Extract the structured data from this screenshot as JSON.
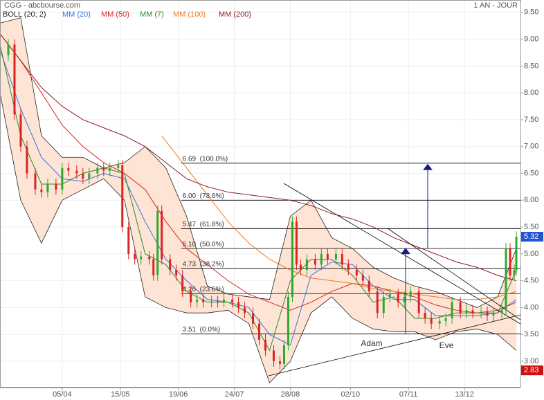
{
  "chart_data": {
    "type": "candlestick",
    "title": "CGG - abcbourse.com",
    "period": "1 AN - JOUR",
    "xlim": [
      0,
      251
    ],
    "ylim": [
      2.51,
      9.73
    ],
    "xticks": [
      {
        "value": 30,
        "label": "05/04"
      },
      {
        "value": 58,
        "label": "15/05"
      },
      {
        "value": 86,
        "label": "19/06"
      },
      {
        "value": 113,
        "label": "24/07"
      },
      {
        "value": 140,
        "label": "28/08"
      },
      {
        "value": 169,
        "label": "02/10"
      },
      {
        "value": 197,
        "label": "07/11"
      },
      {
        "value": 224,
        "label": "13/12"
      }
    ],
    "yticks": [
      {
        "value": 3,
        "label": "3.00"
      },
      {
        "value": 3.5,
        "label": "3.50"
      },
      {
        "value": 4,
        "label": "4.00"
      },
      {
        "value": 4.5,
        "label": "4.50"
      },
      {
        "value": 5,
        "label": "5.00"
      },
      {
        "value": 5.5,
        "label": "5.50"
      },
      {
        "value": 6,
        "label": "6.00"
      },
      {
        "value": 6.5,
        "label": "6.50"
      },
      {
        "value": 7,
        "label": "7.00"
      },
      {
        "value": 7.5,
        "label": "7.50"
      },
      {
        "value": 8,
        "label": "8.00"
      },
      {
        "value": 8.5,
        "label": "8.50"
      },
      {
        "value": 9,
        "label": "9.00"
      },
      {
        "value": 9.5,
        "label": "9.50"
      }
    ],
    "grid": true,
    "up_color": "#2ea82e",
    "down_color": "#dd2222",
    "candles": {
      "x": [
        4,
        7,
        10,
        13,
        17,
        20,
        23,
        27,
        30,
        33,
        37,
        40,
        43,
        47,
        50,
        53,
        57,
        59,
        62,
        65,
        68,
        72,
        74,
        76,
        78,
        82,
        85,
        88,
        92,
        95,
        98,
        102,
        105,
        108,
        112,
        115,
        118,
        122,
        125,
        128,
        132,
        135,
        137,
        139,
        141,
        143,
        145,
        148,
        152,
        155,
        158,
        162,
        165,
        168,
        172,
        175,
        178,
        182,
        185,
        188,
        192,
        195,
        198,
        202,
        205,
        208,
        212,
        215,
        218,
        222,
        225,
        228,
        232,
        235,
        238,
        242,
        244,
        246,
        248,
        249
      ],
      "open": [
        8.7,
        8.9,
        7.6,
        7.0,
        6.5,
        6.2,
        6.15,
        6.3,
        6.2,
        6.6,
        6.55,
        6.5,
        6.4,
        6.5,
        6.6,
        6.55,
        6.6,
        6.65,
        5.5,
        5.0,
        4.9,
        4.95,
        4.9,
        4.6,
        5.8,
        4.9,
        4.7,
        4.6,
        4.3,
        4.1,
        4.15,
        4.1,
        4.12,
        4.1,
        4.15,
        4.1,
        4.0,
        3.9,
        3.7,
        3.4,
        3.2,
        3.0,
        2.95,
        3.3,
        4.2,
        5.6,
        4.8,
        4.7,
        4.9,
        4.8,
        5.0,
        4.9,
        5.0,
        4.8,
        4.7,
        4.6,
        4.5,
        4.3,
        3.9,
        4.2,
        4.25,
        4.1,
        4.2,
        4.3,
        3.9,
        3.8,
        3.7,
        3.75,
        3.8,
        4.1,
        3.9,
        3.95,
        3.9,
        3.92,
        3.85,
        3.9,
        3.95,
        5.1,
        4.6,
        4.7
      ],
      "high": [
        9.0,
        9.0,
        7.7,
        7.1,
        6.6,
        6.3,
        6.4,
        6.4,
        6.7,
        6.7,
        6.65,
        6.6,
        6.6,
        6.7,
        6.7,
        6.7,
        6.75,
        6.75,
        5.6,
        5.1,
        5.05,
        5.05,
        5.0,
        5.9,
        5.9,
        5.0,
        4.8,
        4.7,
        4.4,
        4.25,
        4.25,
        4.22,
        4.22,
        4.25,
        4.25,
        4.2,
        4.1,
        4.0,
        3.8,
        3.5,
        3.3,
        3.1,
        3.4,
        4.3,
        5.7,
        5.7,
        4.9,
        5.0,
        5.0,
        5.1,
        5.1,
        5.1,
        5.1,
        4.9,
        4.8,
        4.7,
        4.6,
        4.4,
        4.3,
        4.35,
        4.35,
        4.3,
        4.4,
        4.4,
        4.0,
        3.9,
        3.85,
        3.9,
        4.2,
        4.2,
        4.05,
        4.05,
        4.02,
        4.02,
        4.0,
        4.05,
        5.2,
        5.2,
        4.8,
        5.42
      ],
      "low": [
        8.6,
        7.5,
        6.9,
        6.4,
        6.1,
        6.05,
        6.05,
        6.1,
        6.1,
        6.45,
        6.4,
        6.3,
        6.3,
        6.4,
        6.45,
        6.45,
        6.5,
        5.4,
        4.9,
        4.8,
        4.8,
        4.8,
        4.5,
        4.5,
        4.8,
        4.6,
        4.5,
        4.2,
        4.0,
        4.0,
        4.0,
        4.0,
        4.0,
        4.0,
        4.0,
        3.9,
        3.8,
        3.6,
        3.3,
        3.1,
        2.9,
        2.85,
        2.85,
        3.2,
        4.1,
        4.7,
        4.6,
        4.6,
        4.7,
        4.7,
        4.8,
        4.8,
        4.7,
        4.6,
        4.5,
        4.4,
        4.2,
        3.8,
        3.8,
        4.1,
        4.0,
        4.0,
        4.1,
        3.8,
        3.7,
        3.6,
        3.6,
        3.65,
        3.7,
        3.8,
        3.8,
        3.8,
        3.8,
        3.75,
        3.75,
        3.8,
        3.85,
        4.5,
        4.5,
        4.6
      ],
      "close": [
        8.9,
        7.6,
        7.0,
        6.5,
        6.2,
        6.15,
        6.3,
        6.2,
        6.6,
        6.55,
        6.5,
        6.4,
        6.5,
        6.6,
        6.55,
        6.6,
        6.65,
        5.5,
        5.0,
        4.9,
        4.95,
        4.9,
        4.6,
        5.8,
        4.9,
        4.7,
        4.6,
        4.3,
        4.1,
        4.15,
        4.1,
        4.12,
        4.1,
        4.15,
        4.1,
        4.0,
        3.9,
        3.7,
        3.4,
        3.2,
        3.0,
        2.95,
        3.3,
        4.2,
        5.6,
        4.8,
        4.7,
        4.9,
        4.8,
        5.0,
        4.9,
        5.0,
        4.8,
        4.7,
        4.6,
        4.5,
        4.3,
        3.9,
        4.2,
        4.25,
        4.1,
        4.2,
        4.3,
        3.9,
        3.8,
        3.7,
        3.75,
        3.8,
        4.1,
        3.9,
        3.95,
        3.9,
        3.92,
        3.85,
        3.9,
        3.95,
        5.1,
        4.6,
        4.7,
        5.32
      ]
    },
    "bollinger": {
      "name": "BOLL (20; 2)",
      "color": "#222222",
      "fill": "#fde4d4",
      "x": [
        0,
        10,
        20,
        30,
        40,
        50,
        60,
        70,
        80,
        90,
        100,
        110,
        120,
        130,
        140,
        150,
        160,
        170,
        180,
        190,
        200,
        210,
        220,
        230,
        240,
        249
      ],
      "upper": [
        9.3,
        9.4,
        7.2,
        6.8,
        6.8,
        6.6,
        6.7,
        7.0,
        6.6,
        5.7,
        4.4,
        4.25,
        4.2,
        4.15,
        5.7,
        6.0,
        5.3,
        5.1,
        4.75,
        4.55,
        4.4,
        4.3,
        4.15,
        4.0,
        4.2,
        5.1
      ],
      "lower": [
        8.0,
        6.0,
        5.2,
        6.0,
        6.2,
        6.4,
        6.0,
        4.2,
        4.0,
        3.9,
        3.9,
        3.95,
        3.7,
        2.6,
        3.0,
        3.9,
        4.2,
        3.8,
        3.6,
        3.55,
        3.55,
        3.4,
        3.55,
        3.6,
        3.5,
        3.2
      ]
    },
    "series": [
      {
        "name": "MM (20)",
        "color": "#3a6fe0",
        "x": [
          0,
          10,
          20,
          30,
          40,
          50,
          60,
          70,
          80,
          90,
          100,
          110,
          120,
          130,
          140,
          150,
          160,
          170,
          180,
          190,
          200,
          210,
          220,
          230,
          240,
          249
        ],
        "values": [
          8.8,
          7.7,
          6.8,
          6.4,
          6.35,
          6.5,
          6.4,
          5.6,
          4.9,
          4.5,
          4.15,
          4.1,
          4.0,
          3.5,
          3.3,
          4.6,
          4.85,
          4.8,
          4.4,
          4.15,
          4.15,
          3.85,
          3.85,
          3.85,
          3.9,
          4.15
        ]
      },
      {
        "name": "MM (50)",
        "color": "#dd2222",
        "x": [
          0,
          10,
          20,
          30,
          40,
          50,
          60,
          70,
          80,
          90,
          100,
          110,
          120,
          130,
          140,
          150,
          160,
          170,
          180,
          190,
          200,
          210,
          220,
          230,
          240,
          249
        ],
        "values": [
          9.1,
          8.6,
          8.0,
          7.4,
          7.0,
          6.7,
          6.5,
          6.2,
          5.6,
          5.1,
          4.8,
          4.5,
          4.25,
          4.1,
          3.95,
          4.1,
          4.3,
          4.45,
          4.4,
          4.3,
          4.2,
          4.05,
          3.95,
          3.9,
          3.95,
          4.1
        ]
      },
      {
        "name": "MM (7)",
        "color": "#2a8a2a",
        "x": [
          0,
          10,
          20,
          30,
          40,
          50,
          60,
          70,
          80,
          90,
          100,
          110,
          120,
          130,
          140,
          150,
          160,
          170,
          180,
          190,
          200,
          210,
          220,
          230,
          240,
          249
        ],
        "values": [
          8.9,
          7.2,
          6.3,
          6.3,
          6.5,
          6.6,
          6.5,
          5.0,
          4.8,
          4.3,
          4.1,
          4.1,
          3.9,
          3.2,
          4.5,
          4.9,
          4.9,
          4.6,
          4.1,
          4.2,
          3.8,
          3.8,
          3.9,
          3.9,
          3.9,
          4.7
        ]
      },
      {
        "name": "MM (100)",
        "color": "#f07820",
        "x": [
          78,
          90,
          100,
          110,
          120,
          130,
          140,
          150,
          160,
          170,
          180,
          190,
          200,
          210,
          220,
          230,
          240,
          249
        ],
        "values": [
          7.2,
          6.6,
          6.1,
          5.6,
          5.2,
          4.9,
          4.7,
          4.55,
          4.5,
          4.45,
          4.35,
          4.3,
          4.25,
          4.2,
          4.15,
          4.15,
          4.2,
          4.3
        ]
      },
      {
        "name": "MM (200)",
        "color": "#8b1a1a",
        "x": [
          0,
          10,
          20,
          30,
          40,
          50,
          60,
          70,
          80,
          90,
          100,
          110,
          120,
          130,
          140,
          150,
          160,
          170,
          180,
          190,
          200,
          210,
          220,
          230,
          240,
          249
        ],
        "values": [
          9.1,
          8.6,
          8.1,
          7.75,
          7.5,
          7.35,
          7.2,
          7.0,
          6.7,
          6.4,
          6.25,
          6.15,
          6.1,
          6.05,
          6.0,
          5.9,
          5.75,
          5.65,
          5.5,
          5.3,
          5.15,
          5.0,
          4.85,
          4.75,
          4.6,
          4.5
        ]
      }
    ],
    "fibonacci": [
      {
        "value": 6.69,
        "label": "6.69  (100.0%)"
      },
      {
        "value": 6.0,
        "label": "6.00  (78.6%)"
      },
      {
        "value": 5.47,
        "label": "5.47  (61.8%)"
      },
      {
        "value": 5.1,
        "label": "5.10  (50.0%)"
      },
      {
        "value": 4.73,
        "label": "4.73  (38.2%)"
      },
      {
        "value": 4.26,
        "label": "4.26  (23.6%)"
      },
      {
        "value": 3.51,
        "label": "3.51  (0.0%)"
      }
    ],
    "last_price": 5.32,
    "min_price": 2.83,
    "annotations": [
      "Adam",
      "Eve"
    ]
  }
}
